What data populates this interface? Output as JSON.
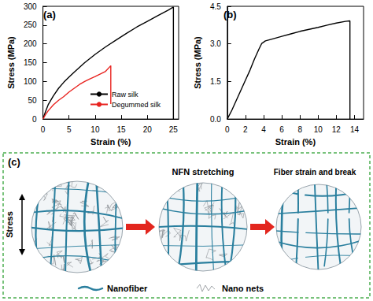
{
  "chart_data": [
    {
      "type": "line",
      "title": "(a)",
      "x_label": "Strain (%)",
      "y_label": "Stress (MPa)",
      "xlim": [
        0,
        26
      ],
      "xticks": [
        0,
        5,
        10,
        15,
        20,
        25
      ],
      "ylim": [
        0,
        300
      ],
      "yticks": [
        0,
        50,
        100,
        150,
        200,
        250,
        300
      ],
      "grid": false,
      "legend": "lower right",
      "series": [
        {
          "name": "Raw silk",
          "color": "#000000",
          "x": [
            0,
            0.5,
            1,
            2,
            3,
            4,
            5,
            6,
            8,
            10,
            12,
            14,
            16,
            18,
            20,
            22,
            24,
            25,
            25
          ],
          "values": [
            0,
            20,
            38,
            62,
            82,
            98,
            112,
            125,
            150,
            172,
            192,
            210,
            228,
            245,
            260,
            275,
            290,
            298,
            0
          ]
        },
        {
          "name": "Degummed silk",
          "color": "#e8231f",
          "x": [
            0,
            0.5,
            1,
            2,
            3,
            4,
            5,
            6,
            7,
            8,
            9,
            10,
            11,
            12,
            13,
            13
          ],
          "values": [
            0,
            12,
            22,
            38,
            50,
            60,
            72,
            82,
            92,
            100,
            107,
            113,
            120,
            127,
            142,
            40
          ]
        }
      ]
    },
    {
      "type": "line",
      "title": "(b)",
      "x_label": "Strain (%)",
      "y_label": "Stress (MPa)",
      "xlim": [
        0,
        15
      ],
      "xticks": [
        0,
        2,
        4,
        6,
        8,
        10,
        12,
        14
      ],
      "ylim": [
        0,
        4.5
      ],
      "yticks": [
        {
          "value": 0,
          "label": "0.0"
        },
        1.5,
        {
          "value": 3,
          "label": "3.0"
        },
        4.5
      ],
      "grid": false,
      "series": [
        {
          "color": "#000000",
          "x": [
            0,
            0.5,
            1,
            1.5,
            2,
            2.5,
            3,
            3.5,
            3.8,
            4.2,
            5,
            6,
            7,
            8,
            9,
            10,
            11,
            12,
            13,
            13.5,
            13.5
          ],
          "values": [
            0,
            0.35,
            0.75,
            1.15,
            1.55,
            1.95,
            2.4,
            2.8,
            3.02,
            3.12,
            3.2,
            3.3,
            3.4,
            3.5,
            3.58,
            3.66,
            3.75,
            3.83,
            3.9,
            3.92,
            0
          ]
        }
      ]
    }
  ],
  "diagram": {
    "label": "(c)",
    "stress_label": "Stress",
    "stage_titles": [
      "NFN stretching",
      "Fiber strain and break"
    ],
    "legend": [
      {
        "label": "Nanofiber"
      },
      {
        "label": "Nano nets"
      }
    ]
  }
}
